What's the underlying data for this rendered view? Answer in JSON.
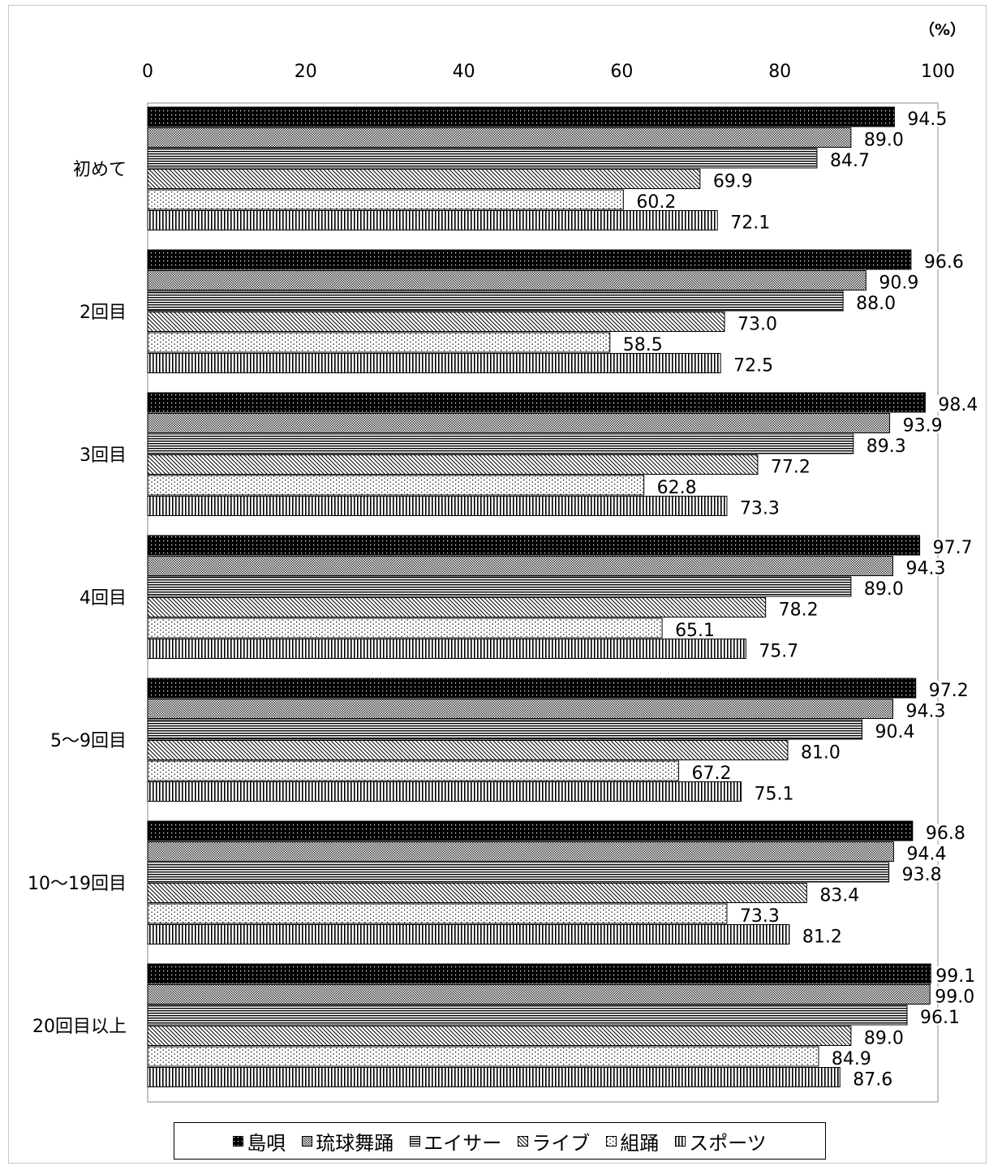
{
  "chart_data": {
    "type": "bar",
    "orientation": "horizontal",
    "unit_label": "（%）",
    "xlim": [
      0,
      100
    ],
    "x_ticks": [
      "0",
      "20",
      "40",
      "60",
      "80",
      "100"
    ],
    "categories": [
      "初めて",
      "2回目",
      "3回目",
      "4回目",
      "5～9回目",
      "10～19回目",
      "20回目以上"
    ],
    "series": [
      {
        "name": "島唄",
        "pattern": "dense-dots-dark",
        "values": [
          94.5,
          96.6,
          98.4,
          97.7,
          97.2,
          96.8,
          99.1
        ]
      },
      {
        "name": "琉球舞踊",
        "pattern": "crosshatch",
        "values": [
          89.0,
          90.9,
          93.9,
          94.3,
          94.3,
          94.4,
          99.0
        ]
      },
      {
        "name": "エイサー",
        "pattern": "horizontal-lines",
        "values": [
          84.7,
          88.0,
          89.3,
          89.0,
          90.4,
          93.8,
          96.1
        ]
      },
      {
        "name": "ライブ",
        "pattern": "diagonal-lines",
        "values": [
          69.9,
          73.0,
          77.2,
          78.2,
          81.0,
          83.4,
          89.0
        ]
      },
      {
        "name": "組踊",
        "pattern": "sparse-dots",
        "values": [
          60.2,
          58.5,
          62.8,
          65.1,
          67.2,
          73.3,
          84.9
        ]
      },
      {
        "name": "スポーツ",
        "pattern": "vertical-lines",
        "values": [
          72.1,
          72.5,
          73.3,
          75.7,
          75.1,
          81.2,
          87.6
        ]
      }
    ],
    "legend_position": "bottom",
    "grid": false
  }
}
